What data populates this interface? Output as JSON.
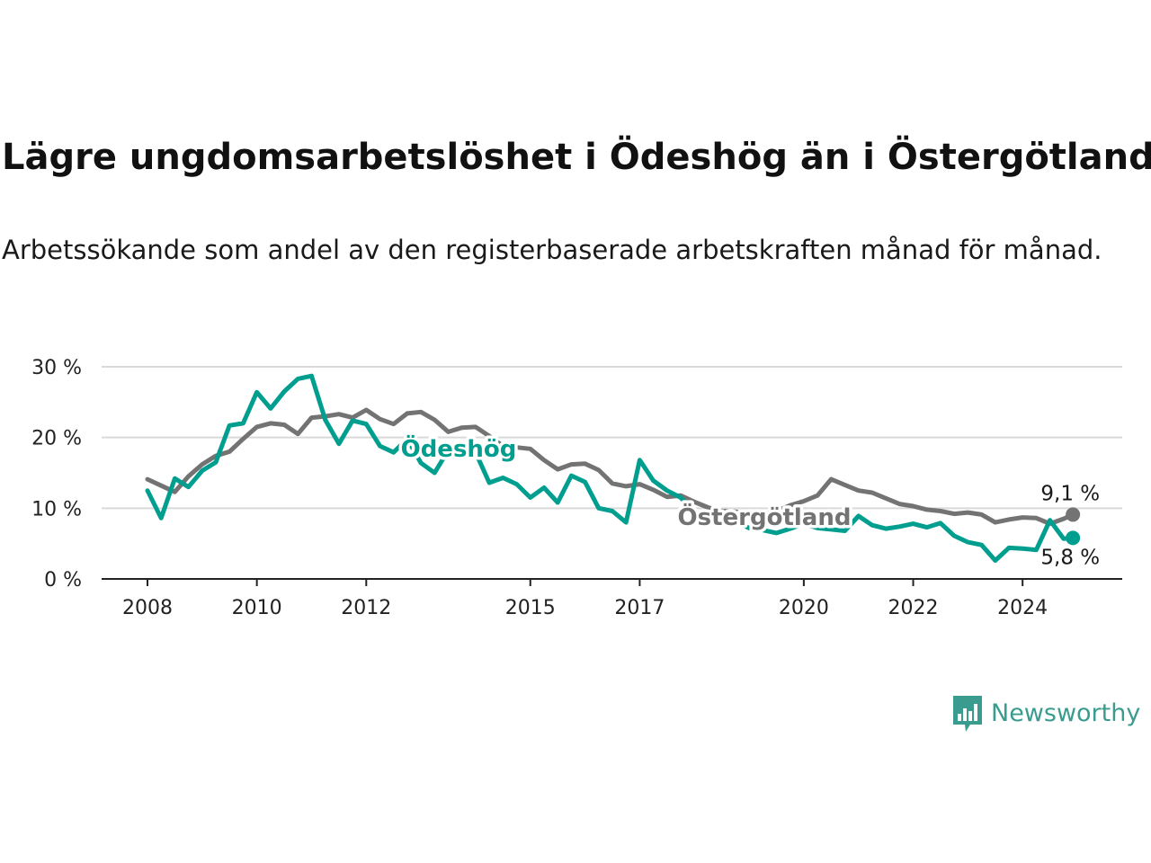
{
  "title": "Lägre ungdomsarbetslöshet i Ödeshög än i Östergötland",
  "subtitle": "Arbetssökande som andel av den registerbaserade arbetskraften månad för månad.",
  "brand": {
    "name": "Newsworthy",
    "icon": "newsworthy-logo-icon",
    "color": "#3a9c8e"
  },
  "chart_data": {
    "type": "line",
    "title": "Lägre ungdomsarbetslöshet i Ödeshög än i Östergötland",
    "xlabel": "",
    "ylabel": "",
    "ylim": [
      0,
      30
    ],
    "yticks": [
      0,
      10,
      20,
      30
    ],
    "ytick_labels": [
      "0 %",
      "10 %",
      "20 %",
      "30 %"
    ],
    "xlim": [
      2008.0,
      2025.0
    ],
    "xticks": [
      2008,
      2010,
      2012,
      2015,
      2017,
      2020,
      2022,
      2024
    ],
    "xtick_labels": [
      "2008",
      "2010",
      "2012",
      "2015",
      "2017",
      "2020",
      "2022",
      "2024"
    ],
    "grid": true,
    "series": [
      {
        "name": "Östergötland",
        "color": "#737373",
        "end_label": "9,1 %",
        "x": [
          2008.0,
          2008.25,
          2008.5,
          2008.75,
          2009.0,
          2009.25,
          2009.5,
          2009.75,
          2010.0,
          2010.25,
          2010.5,
          2010.75,
          2011.0,
          2011.25,
          2011.5,
          2011.75,
          2012.0,
          2012.25,
          2012.5,
          2012.75,
          2013.0,
          2013.25,
          2013.5,
          2013.75,
          2014.0,
          2014.25,
          2014.5,
          2014.75,
          2015.0,
          2015.25,
          2015.5,
          2015.75,
          2016.0,
          2016.25,
          2016.5,
          2016.75,
          2017.0,
          2017.25,
          2017.5,
          2017.75,
          2018.0,
          2018.25,
          2018.5,
          2018.75,
          2019.0,
          2019.25,
          2019.5,
          2019.75,
          2020.0,
          2020.25,
          2020.5,
          2020.75,
          2021.0,
          2021.25,
          2021.5,
          2021.75,
          2022.0,
          2022.25,
          2022.5,
          2022.75,
          2023.0,
          2023.25,
          2023.5,
          2023.75,
          2024.0,
          2024.25,
          2024.5,
          2024.75,
          2024.92
        ],
        "y": [
          14.1,
          13.2,
          12.3,
          14.5,
          16.2,
          17.4,
          18.0,
          19.8,
          21.5,
          22.0,
          21.8,
          20.5,
          22.8,
          23.0,
          23.3,
          22.8,
          23.9,
          22.6,
          21.9,
          23.4,
          23.6,
          22.5,
          20.8,
          21.4,
          21.5,
          20.2,
          18.8,
          18.6,
          18.4,
          16.8,
          15.5,
          16.2,
          16.3,
          15.4,
          13.5,
          13.1,
          13.4,
          12.6,
          11.6,
          11.8,
          10.9,
          10.1,
          9.6,
          9.5,
          9.3,
          9.1,
          9.6,
          10.4,
          11.0,
          11.8,
          14.1,
          13.3,
          12.5,
          12.2,
          11.4,
          10.6,
          10.3,
          9.8,
          9.6,
          9.2,
          9.4,
          9.1,
          8.0,
          8.4,
          8.7,
          8.6,
          7.8,
          8.5,
          9.1
        ]
      },
      {
        "name": "Ödeshög",
        "color": "#009e8f",
        "end_label": "5,8 %",
        "x": [
          2008.0,
          2008.25,
          2008.5,
          2008.75,
          2009.0,
          2009.25,
          2009.5,
          2009.75,
          2010.0,
          2010.25,
          2010.5,
          2010.75,
          2011.0,
          2011.25,
          2011.5,
          2011.75,
          2012.0,
          2012.25,
          2012.5,
          2012.75,
          2013.0,
          2013.25,
          2013.5,
          2013.75,
          2014.0,
          2014.25,
          2014.5,
          2014.75,
          2015.0,
          2015.25,
          2015.5,
          2015.75,
          2016.0,
          2016.25,
          2016.5,
          2016.75,
          2017.0,
          2017.25,
          2017.5,
          2017.75,
          2018.0,
          2018.25,
          2018.5,
          2018.75,
          2019.0,
          2019.25,
          2019.5,
          2019.75,
          2020.0,
          2020.25,
          2020.5,
          2020.75,
          2021.0,
          2021.25,
          2021.5,
          2021.75,
          2022.0,
          2022.25,
          2022.5,
          2022.75,
          2023.0,
          2023.25,
          2023.5,
          2023.75,
          2024.0,
          2024.25,
          2024.5,
          2024.75,
          2024.92
        ],
        "y": [
          12.5,
          8.6,
          14.2,
          13.0,
          15.3,
          16.5,
          21.7,
          22.0,
          26.4,
          24.1,
          26.5,
          28.3,
          28.7,
          22.5,
          19.1,
          22.4,
          21.9,
          18.8,
          17.9,
          19.8,
          16.4,
          15.0,
          18.2,
          17.5,
          17.9,
          13.6,
          14.3,
          13.4,
          11.5,
          12.9,
          10.8,
          14.6,
          13.7,
          10.0,
          9.6,
          8.0,
          16.8,
          13.9,
          12.5,
          11.5,
          9.4,
          8.8,
          8.4,
          8.1,
          7.2,
          6.9,
          6.5,
          7.1,
          7.8,
          7.2,
          7.0,
          6.8,
          8.9,
          7.6,
          7.1,
          7.4,
          7.8,
          7.3,
          7.9,
          6.1,
          5.2,
          4.8,
          2.6,
          4.4,
          4.3,
          4.1,
          8.3,
          5.7,
          5.8
        ]
      }
    ]
  }
}
